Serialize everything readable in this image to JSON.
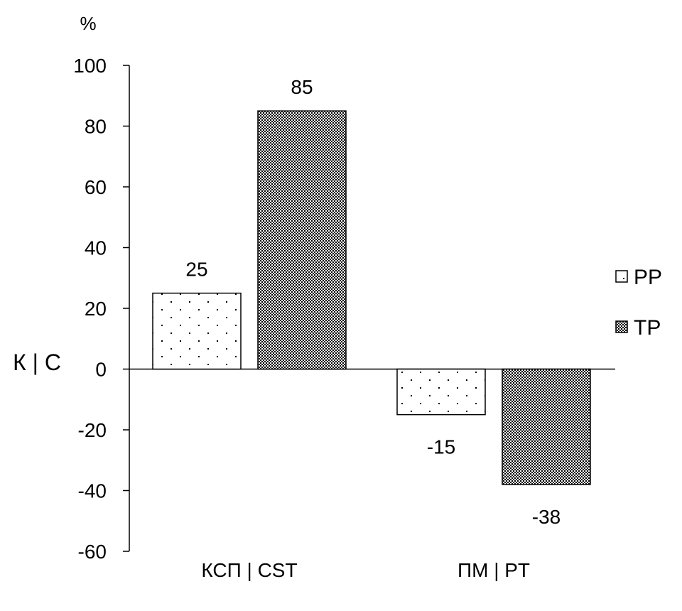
{
  "chart_data": {
    "type": "bar",
    "unit_label": "%",
    "ylabel": "К | С",
    "categories": [
      "КСП | CST",
      "ПМ | PT"
    ],
    "series": [
      {
        "name": "PP",
        "values": [
          25,
          -15
        ],
        "pattern": "sparse-dots"
      },
      {
        "name": "TP",
        "values": [
          85,
          -38
        ],
        "pattern": "dense-checker"
      }
    ],
    "data_labels": [
      [
        "25",
        "-15"
      ],
      [
        "85",
        "-38"
      ]
    ],
    "ylim": [
      -60,
      100
    ],
    "yticks": [
      100,
      80,
      60,
      40,
      20,
      0,
      -20,
      -40,
      -60
    ],
    "ytick_labels": [
      "100",
      "80",
      "60",
      "40",
      "20",
      "0",
      "-20",
      "-40",
      "-60"
    ],
    "grid": false,
    "legend_position": "right",
    "colors": {
      "stroke": "#000000",
      "fill": "#ffffff",
      "pattern": "#000000"
    }
  }
}
